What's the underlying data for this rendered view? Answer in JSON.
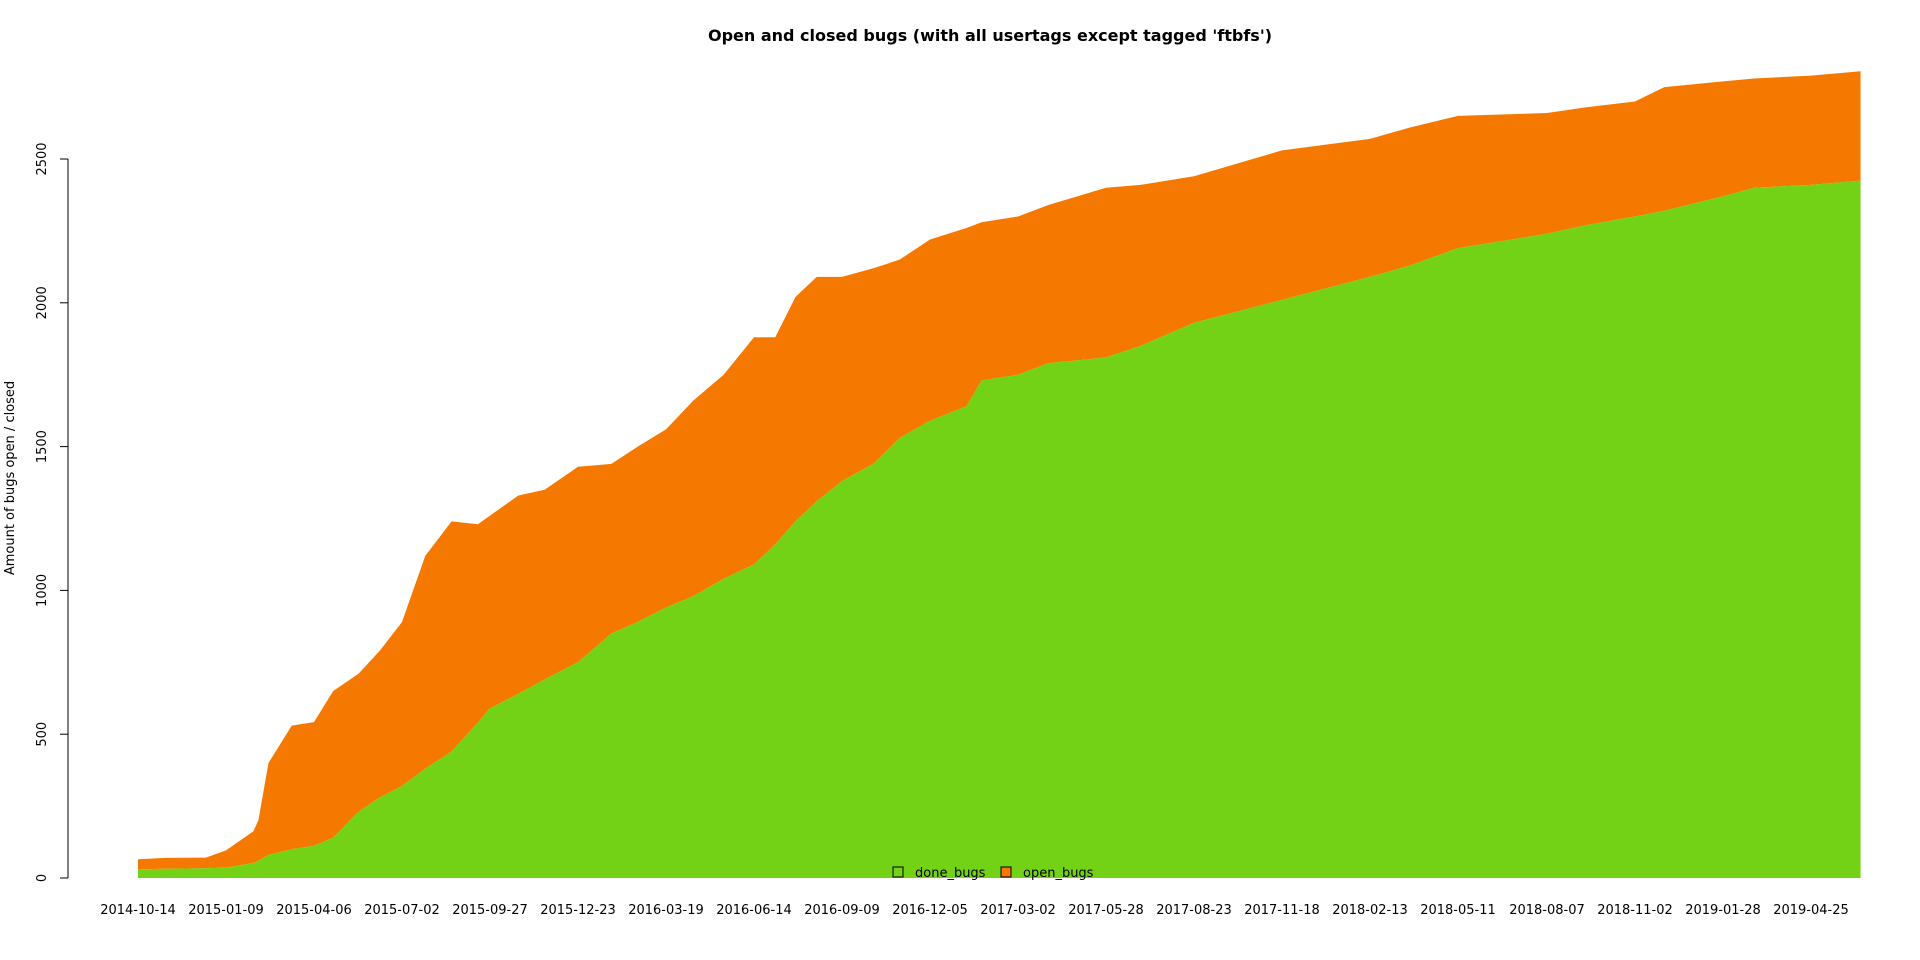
{
  "chart_data": {
    "type": "area",
    "stacked": true,
    "title": "Open and closed bugs (with all usertags except tagged 'ftbfs')",
    "xlabel": "",
    "ylabel": "Amount of bugs open / closed",
    "ylim": [
      0,
      2800
    ],
    "yticks": [
      0,
      500,
      1000,
      1500,
      2000,
      2500
    ],
    "xlim": [
      "2014-10-14",
      "2019-06-13"
    ],
    "xticks": [
      "2014-10-14",
      "2015-01-09",
      "2015-04-06",
      "2015-07-02",
      "2015-09-27",
      "2015-12-23",
      "2016-03-19",
      "2016-06-14",
      "2016-09-09",
      "2016-12-05",
      "2017-03-02",
      "2017-05-28",
      "2017-08-23",
      "2017-11-18",
      "2018-02-13",
      "2018-05-11",
      "2018-08-07",
      "2018-11-02",
      "2019-01-28",
      "2019-04-25"
    ],
    "grid": false,
    "legend_position": "bottom-center",
    "colors": {
      "done_bugs": "#73d216",
      "open_bugs": "#f57900"
    },
    "x": [
      "2014-10-14",
      "2014-11-10",
      "2014-12-20",
      "2015-01-09",
      "2015-01-25",
      "2015-02-05",
      "2015-02-10",
      "2015-02-20",
      "2015-03-15",
      "2015-04-06",
      "2015-04-25",
      "2015-05-20",
      "2015-06-10",
      "2015-07-02",
      "2015-07-25",
      "2015-08-20",
      "2015-09-15",
      "2015-09-27",
      "2015-10-25",
      "2015-11-20",
      "2015-12-23",
      "2016-01-25",
      "2016-02-20",
      "2016-03-19",
      "2016-04-15",
      "2016-05-15",
      "2016-06-14",
      "2016-07-05",
      "2016-07-25",
      "2016-08-15",
      "2016-09-09",
      "2016-10-10",
      "2016-11-05",
      "2016-12-05",
      "2017-01-10",
      "2017-01-25",
      "2017-03-02",
      "2017-04-01",
      "2017-05-28",
      "2017-07-01",
      "2017-08-23",
      "2017-11-18",
      "2018-02-13",
      "2018-03-25",
      "2018-05-11",
      "2018-08-07",
      "2018-09-15",
      "2018-11-02",
      "2018-12-01",
      "2019-01-28",
      "2019-02-28",
      "2019-04-25",
      "2019-06-13"
    ],
    "series": [
      {
        "name": "done_bugs",
        "values": [
          30,
          32,
          34,
          36,
          45,
          52,
          60,
          80,
          100,
          112,
          140,
          230,
          280,
          320,
          380,
          440,
          540,
          590,
          640,
          690,
          750,
          850,
          890,
          940,
          980,
          1040,
          1090,
          1160,
          1240,
          1310,
          1380,
          1440,
          1530,
          1590,
          1640,
          1730,
          1750,
          1790,
          1810,
          1850,
          1930,
          2010,
          2090,
          2130,
          2190,
          2240,
          2270,
          2300,
          2320,
          2370,
          2400,
          2410,
          2425
        ]
      },
      {
        "name": "open_bugs",
        "values": [
          35,
          38,
          37,
          60,
          90,
          110,
          140,
          320,
          430,
          430,
          510,
          480,
          510,
          570,
          740,
          800,
          690,
          670,
          690,
          660,
          680,
          590,
          610,
          620,
          680,
          710,
          790,
          720,
          780,
          780,
          710,
          680,
          620,
          630,
          620,
          550,
          550,
          550,
          590,
          560,
          510,
          520,
          480,
          480,
          460,
          420,
          410,
          400,
          430,
          400,
          380,
          380,
          380
        ]
      }
    ]
  }
}
